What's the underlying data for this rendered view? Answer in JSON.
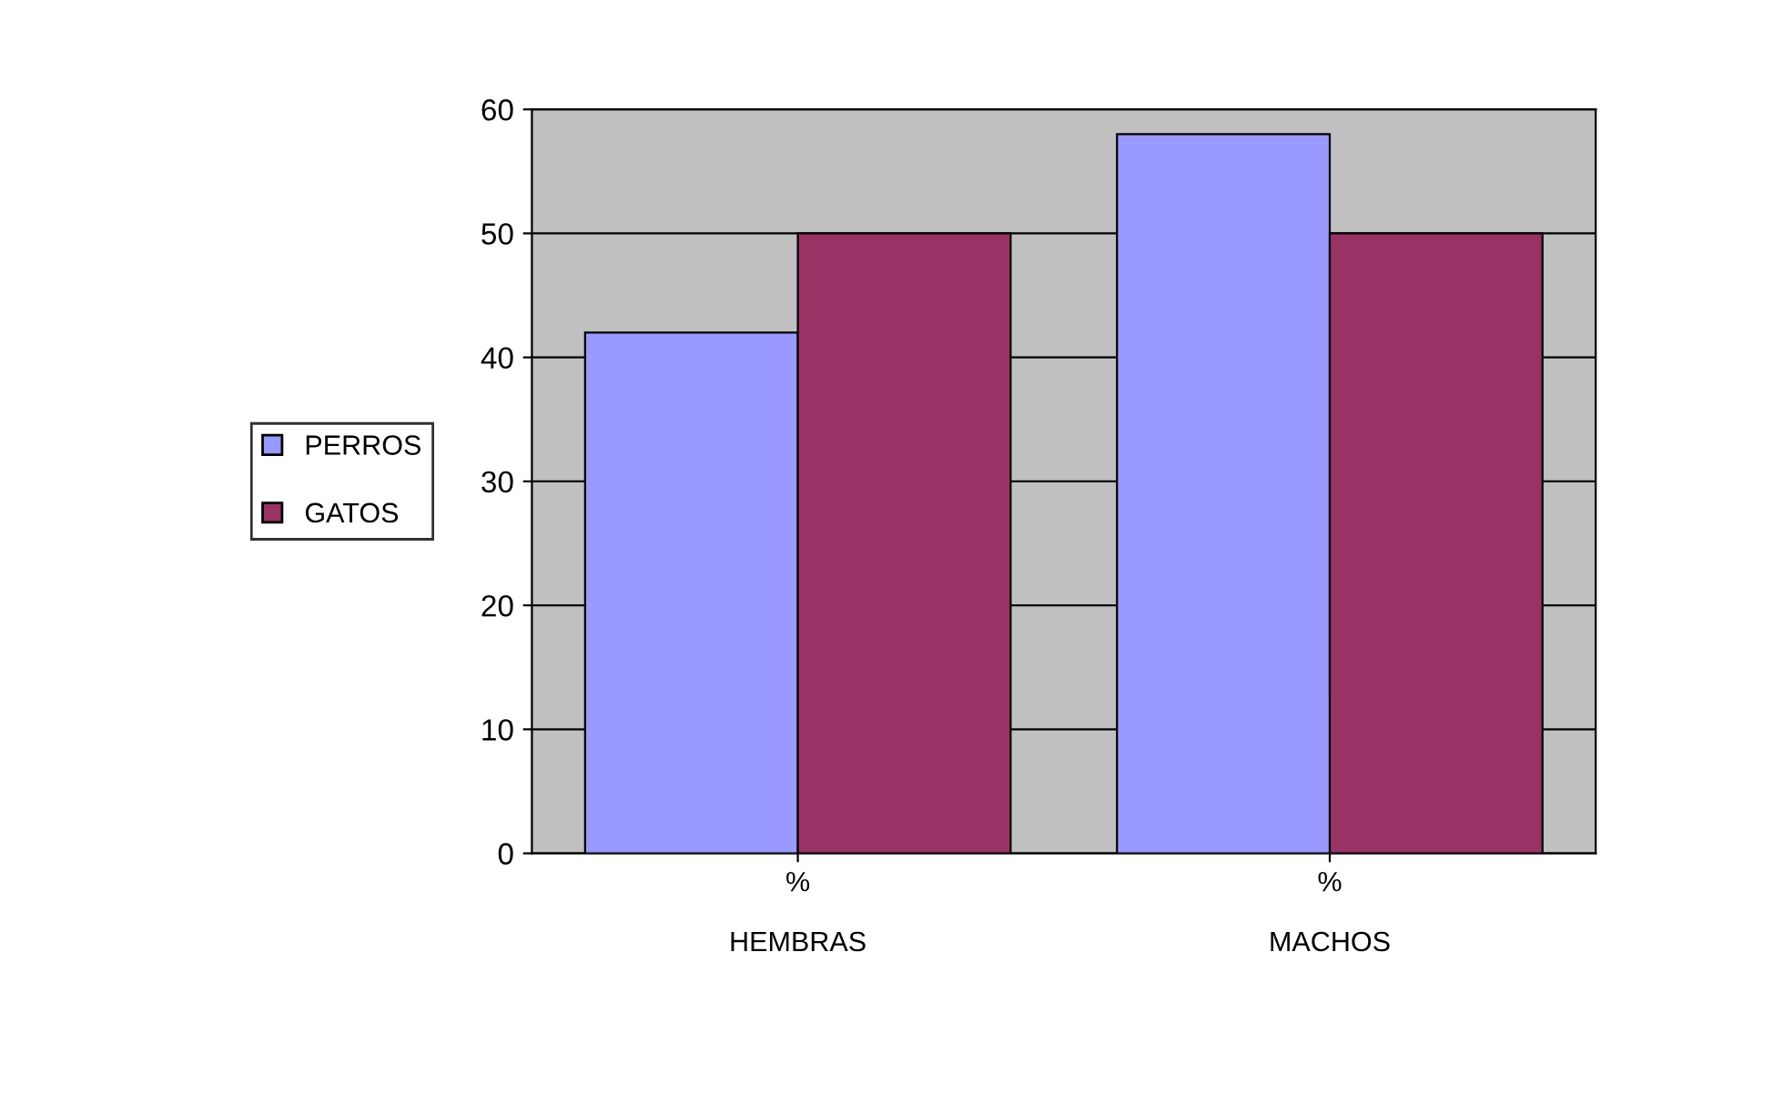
{
  "chart_data": {
    "type": "bar",
    "categories": [
      "%\n\nHEMBRAS",
      "%\n\nMACHOS"
    ],
    "series": [
      {
        "name": "PERROS",
        "color": "#9999ff",
        "values": [
          42,
          58
        ]
      },
      {
        "name": "GATOS",
        "color": "#993366",
        "values": [
          50,
          50
        ]
      }
    ],
    "ylim": [
      0,
      60
    ],
    "yticks": [
      0,
      10,
      20,
      30,
      40,
      50,
      60
    ],
    "grid": "y",
    "legend": "left"
  }
}
